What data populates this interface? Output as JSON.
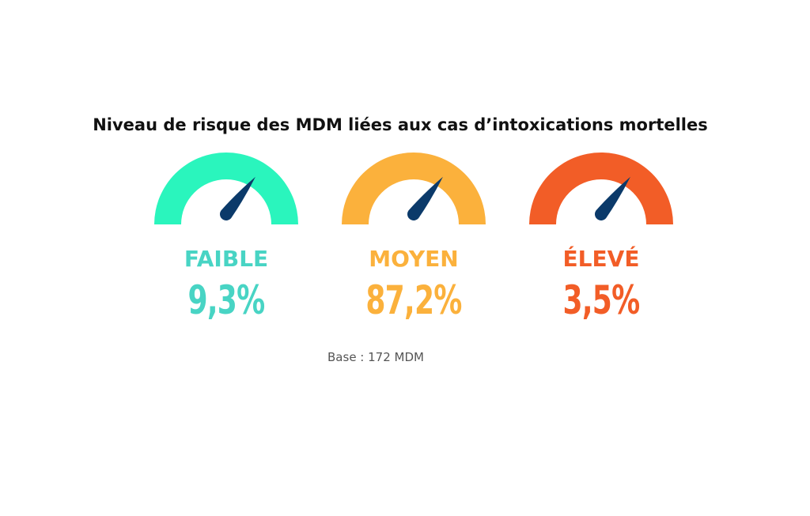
{
  "chart_data": {
    "type": "gauge",
    "title": "Niveau de risque des MDM liées aux cas d’intoxications mortelles",
    "categories": [
      "FAIBLE",
      "MOYEN",
      "ÉLEVÉ"
    ],
    "values_text": [
      "9,3%",
      "87,2%",
      "3,5%"
    ],
    "values": [
      9.3,
      87.2,
      3.5
    ],
    "unit": "%",
    "colors": {
      "arc": [
        "#2af5bd",
        "#fbb13c",
        "#f25d27"
      ],
      "label": [
        "#48d4c4",
        "#fbb13c",
        "#f25d27"
      ],
      "needle": "#0b3a6a"
    },
    "base_note": "Base : 172 MDM"
  }
}
